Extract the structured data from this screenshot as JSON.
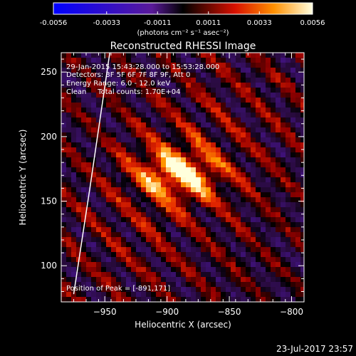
{
  "chart_data": {
    "type": "heatmap",
    "title": "Reconstructed RHESSI Image",
    "xlabel": "Heliocentric X (arcsec)",
    "ylabel": "Heliocentric Y (arcsec)",
    "xlim": [
      -985,
      -790
    ],
    "ylim": [
      72,
      265
    ],
    "x_ticks": [
      -950,
      -900,
      -850,
      -800
    ],
    "y_ticks": [
      100,
      150,
      200,
      250
    ],
    "colorbar": {
      "min": -0.0056,
      "max": 0.0056,
      "ticks": [
        "-0.0056",
        "-0.0033",
        "-0.0011",
        "0.0011",
        "0.0033",
        "0.0056"
      ],
      "unit_label": "(photons cm⁻² s⁻¹ asec⁻²)"
    },
    "annotations": [
      "29-Jan-2015 15:43:28.000 to 15:53:28.000",
      "Detectors: 3F 5F 6F 7F 8F 9F, Att 0",
      "Energy Range: 6.0 - 12.0 keV",
      "Clean     Total counts: 1.70E+04"
    ],
    "peak_label": "Position of Peak = [-891,171]",
    "peak": {
      "x": -891,
      "y": 171
    },
    "grid": false,
    "limb_line": [
      [
        -975,
        78
      ],
      [
        -962,
        160
      ],
      [
        -946,
        265
      ]
    ]
  },
  "footer": {
    "timestamp": "23-Jul-2017 23:57"
  }
}
